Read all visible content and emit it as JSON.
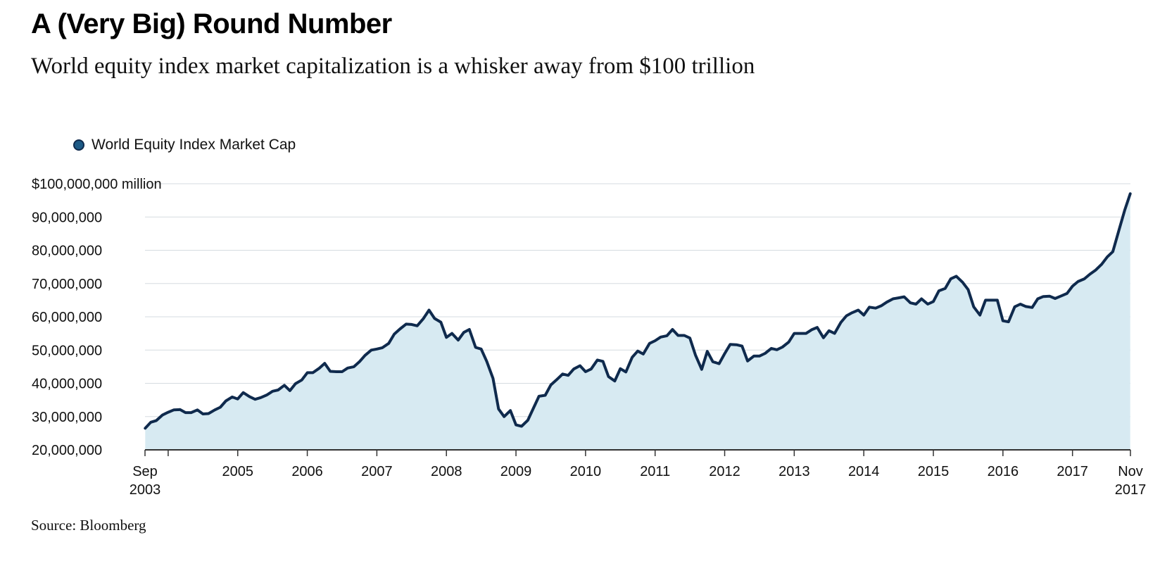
{
  "title": "A (Very Big) Round Number",
  "subtitle": "World equity index market capitalization is a whisker away from $100 trillion",
  "source": "Source: Bloomberg",
  "chart_data": {
    "type": "area",
    "title": "A (Very Big) Round Number",
    "subtitle": "World equity index market capitalization is a whisker away from $100 trillion",
    "legend": [
      "World Equity Index Market Cap"
    ],
    "legend_position": "top-left",
    "ylabel": "$ million",
    "ylim": [
      20000000,
      100000000
    ],
    "yticks": [
      20000000,
      30000000,
      40000000,
      50000000,
      60000000,
      70000000,
      80000000,
      90000000,
      100000000
    ],
    "ytick_labels": [
      "20,000,000",
      "30,000,000",
      "40,000,000",
      "50,000,000",
      "60,000,000",
      "70,000,000",
      "80,000,000",
      "90,000,000",
      "$100,000,000 million"
    ],
    "xlim": [
      2003.667,
      2017.833
    ],
    "xticks": [
      {
        "year": 2003.667,
        "line1": "Sep",
        "line2": "2003"
      },
      {
        "year": 2005,
        "line1": "2005",
        "line2": ""
      },
      {
        "year": 2006,
        "line1": "2006",
        "line2": ""
      },
      {
        "year": 2007,
        "line1": "2007",
        "line2": ""
      },
      {
        "year": 2008,
        "line1": "2008",
        "line2": ""
      },
      {
        "year": 2009,
        "line1": "2009",
        "line2": ""
      },
      {
        "year": 2010,
        "line1": "2010",
        "line2": ""
      },
      {
        "year": 2011,
        "line1": "2011",
        "line2": ""
      },
      {
        "year": 2012,
        "line1": "2012",
        "line2": ""
      },
      {
        "year": 2013,
        "line1": "2013",
        "line2": ""
      },
      {
        "year": 2014,
        "line1": "2014",
        "line2": ""
      },
      {
        "year": 2015,
        "line1": "2015",
        "line2": ""
      },
      {
        "year": 2016,
        "line1": "2016",
        "line2": ""
      },
      {
        "year": 2017,
        "line1": "2017",
        "line2": ""
      },
      {
        "year": 2017.833,
        "line1": "Nov",
        "line2": "2017"
      }
    ],
    "minor_xticks": [
      2004
    ],
    "grid": true,
    "series": [
      {
        "name": "World Equity Index Market Cap",
        "x": [
          2003.67,
          2003.75,
          2003.83,
          2003.92,
          2004.0,
          2004.08,
          2004.17,
          2004.25,
          2004.33,
          2004.42,
          2004.5,
          2004.58,
          2004.67,
          2004.75,
          2004.83,
          2004.92,
          2005.0,
          2005.08,
          2005.17,
          2005.25,
          2005.33,
          2005.42,
          2005.5,
          2005.58,
          2005.67,
          2005.75,
          2005.83,
          2005.92,
          2006.0,
          2006.08,
          2006.17,
          2006.25,
          2006.33,
          2006.42,
          2006.5,
          2006.58,
          2006.67,
          2006.75,
          2006.83,
          2006.92,
          2007.0,
          2007.08,
          2007.17,
          2007.25,
          2007.33,
          2007.42,
          2007.5,
          2007.58,
          2007.67,
          2007.75,
          2007.83,
          2007.92,
          2008.0,
          2008.08,
          2008.17,
          2008.25,
          2008.33,
          2008.42,
          2008.5,
          2008.58,
          2008.67,
          2008.75,
          2008.83,
          2008.92,
          2009.0,
          2009.08,
          2009.17,
          2009.25,
          2009.33,
          2009.42,
          2009.5,
          2009.58,
          2009.67,
          2009.75,
          2009.83,
          2009.92,
          2010.0,
          2010.08,
          2010.17,
          2010.25,
          2010.33,
          2010.42,
          2010.5,
          2010.58,
          2010.67,
          2010.75,
          2010.83,
          2010.92,
          2011.0,
          2011.08,
          2011.17,
          2011.25,
          2011.33,
          2011.42,
          2011.5,
          2011.58,
          2011.67,
          2011.75,
          2011.83,
          2011.92,
          2012.0,
          2012.08,
          2012.17,
          2012.25,
          2012.33,
          2012.42,
          2012.5,
          2012.58,
          2012.67,
          2012.75,
          2012.83,
          2012.92,
          2013.0,
          2013.08,
          2013.17,
          2013.25,
          2013.33,
          2013.42,
          2013.5,
          2013.58,
          2013.67,
          2013.75,
          2013.83,
          2013.92,
          2014.0,
          2014.08,
          2014.17,
          2014.25,
          2014.33,
          2014.42,
          2014.5,
          2014.58,
          2014.67,
          2014.75,
          2014.83,
          2014.92,
          2015.0,
          2015.08,
          2015.17,
          2015.25,
          2015.33,
          2015.42,
          2015.5,
          2015.58,
          2015.67,
          2015.75,
          2015.83,
          2015.92,
          2016.0,
          2016.08,
          2016.17,
          2016.25,
          2016.33,
          2016.42,
          2016.5,
          2016.58,
          2016.67,
          2016.75,
          2016.83,
          2016.92,
          2017.0,
          2017.08,
          2017.17,
          2017.25,
          2017.33,
          2017.42,
          2017.5,
          2017.58,
          2017.67,
          2017.75,
          2017.83
        ],
        "values": [
          26500000,
          28300000,
          28800000,
          30500000,
          31300000,
          32000000,
          32100000,
          31200000,
          31200000,
          32000000,
          30800000,
          30900000,
          32000000,
          32800000,
          34700000,
          35900000,
          35300000,
          37200000,
          36000000,
          35200000,
          35700000,
          36500000,
          37600000,
          38000000,
          39400000,
          37800000,
          39900000,
          41000000,
          43200000,
          43200000,
          44500000,
          46000000,
          43600000,
          43500000,
          43500000,
          44600000,
          45000000,
          46500000,
          48400000,
          50000000,
          50300000,
          50700000,
          52000000,
          54800000,
          56300000,
          57800000,
          57700000,
          57300000,
          59500000,
          62000000,
          59500000,
          58400000,
          53800000,
          55000000,
          53000000,
          55300000,
          56200000,
          50800000,
          50300000,
          46600000,
          41500000,
          32300000,
          30000000,
          31800000,
          27500000,
          27100000,
          28900000,
          32500000,
          36100000,
          36400000,
          39500000,
          41000000,
          42800000,
          42400000,
          44300000,
          45300000,
          43500000,
          44300000,
          47000000,
          46600000,
          42000000,
          40700000,
          44400000,
          43400000,
          47800000,
          49700000,
          48800000,
          52000000,
          52800000,
          53900000,
          54300000,
          56200000,
          54400000,
          54400000,
          53600000,
          48500000,
          44200000,
          49600000,
          46500000,
          45900000,
          48900000,
          51700000,
          51600000,
          51200000,
          46700000,
          48200000,
          48200000,
          49000000,
          50500000,
          50100000,
          50900000,
          52400000,
          55000000,
          55000000,
          55000000,
          56100000,
          56800000,
          53700000,
          55800000,
          55000000,
          58300000,
          60300000,
          61200000,
          62000000,
          60500000,
          62900000,
          62600000,
          63300000,
          64400000,
          65400000,
          65700000,
          66000000,
          64200000,
          63800000,
          65400000,
          63800000,
          64600000,
          67800000,
          68500000,
          71400000,
          72200000,
          70400000,
          68200000,
          63000000,
          60500000,
          65000000,
          65000000,
          65000000,
          58800000,
          58500000,
          63000000,
          63800000,
          63100000,
          62800000,
          65400000,
          66100000,
          66200000,
          65500000,
          66200000,
          67000000,
          69200000,
          70600000,
          71400000,
          72800000,
          74000000,
          75800000,
          78000000,
          79600000,
          86200000,
          92000000,
          97000000
        ]
      }
    ]
  },
  "colors": {
    "line": "#0f2a4d",
    "area": "#d7eaf2",
    "grid": "#d5dbe0",
    "axis": "#333333",
    "legend_dot": "#1d5a86"
  }
}
